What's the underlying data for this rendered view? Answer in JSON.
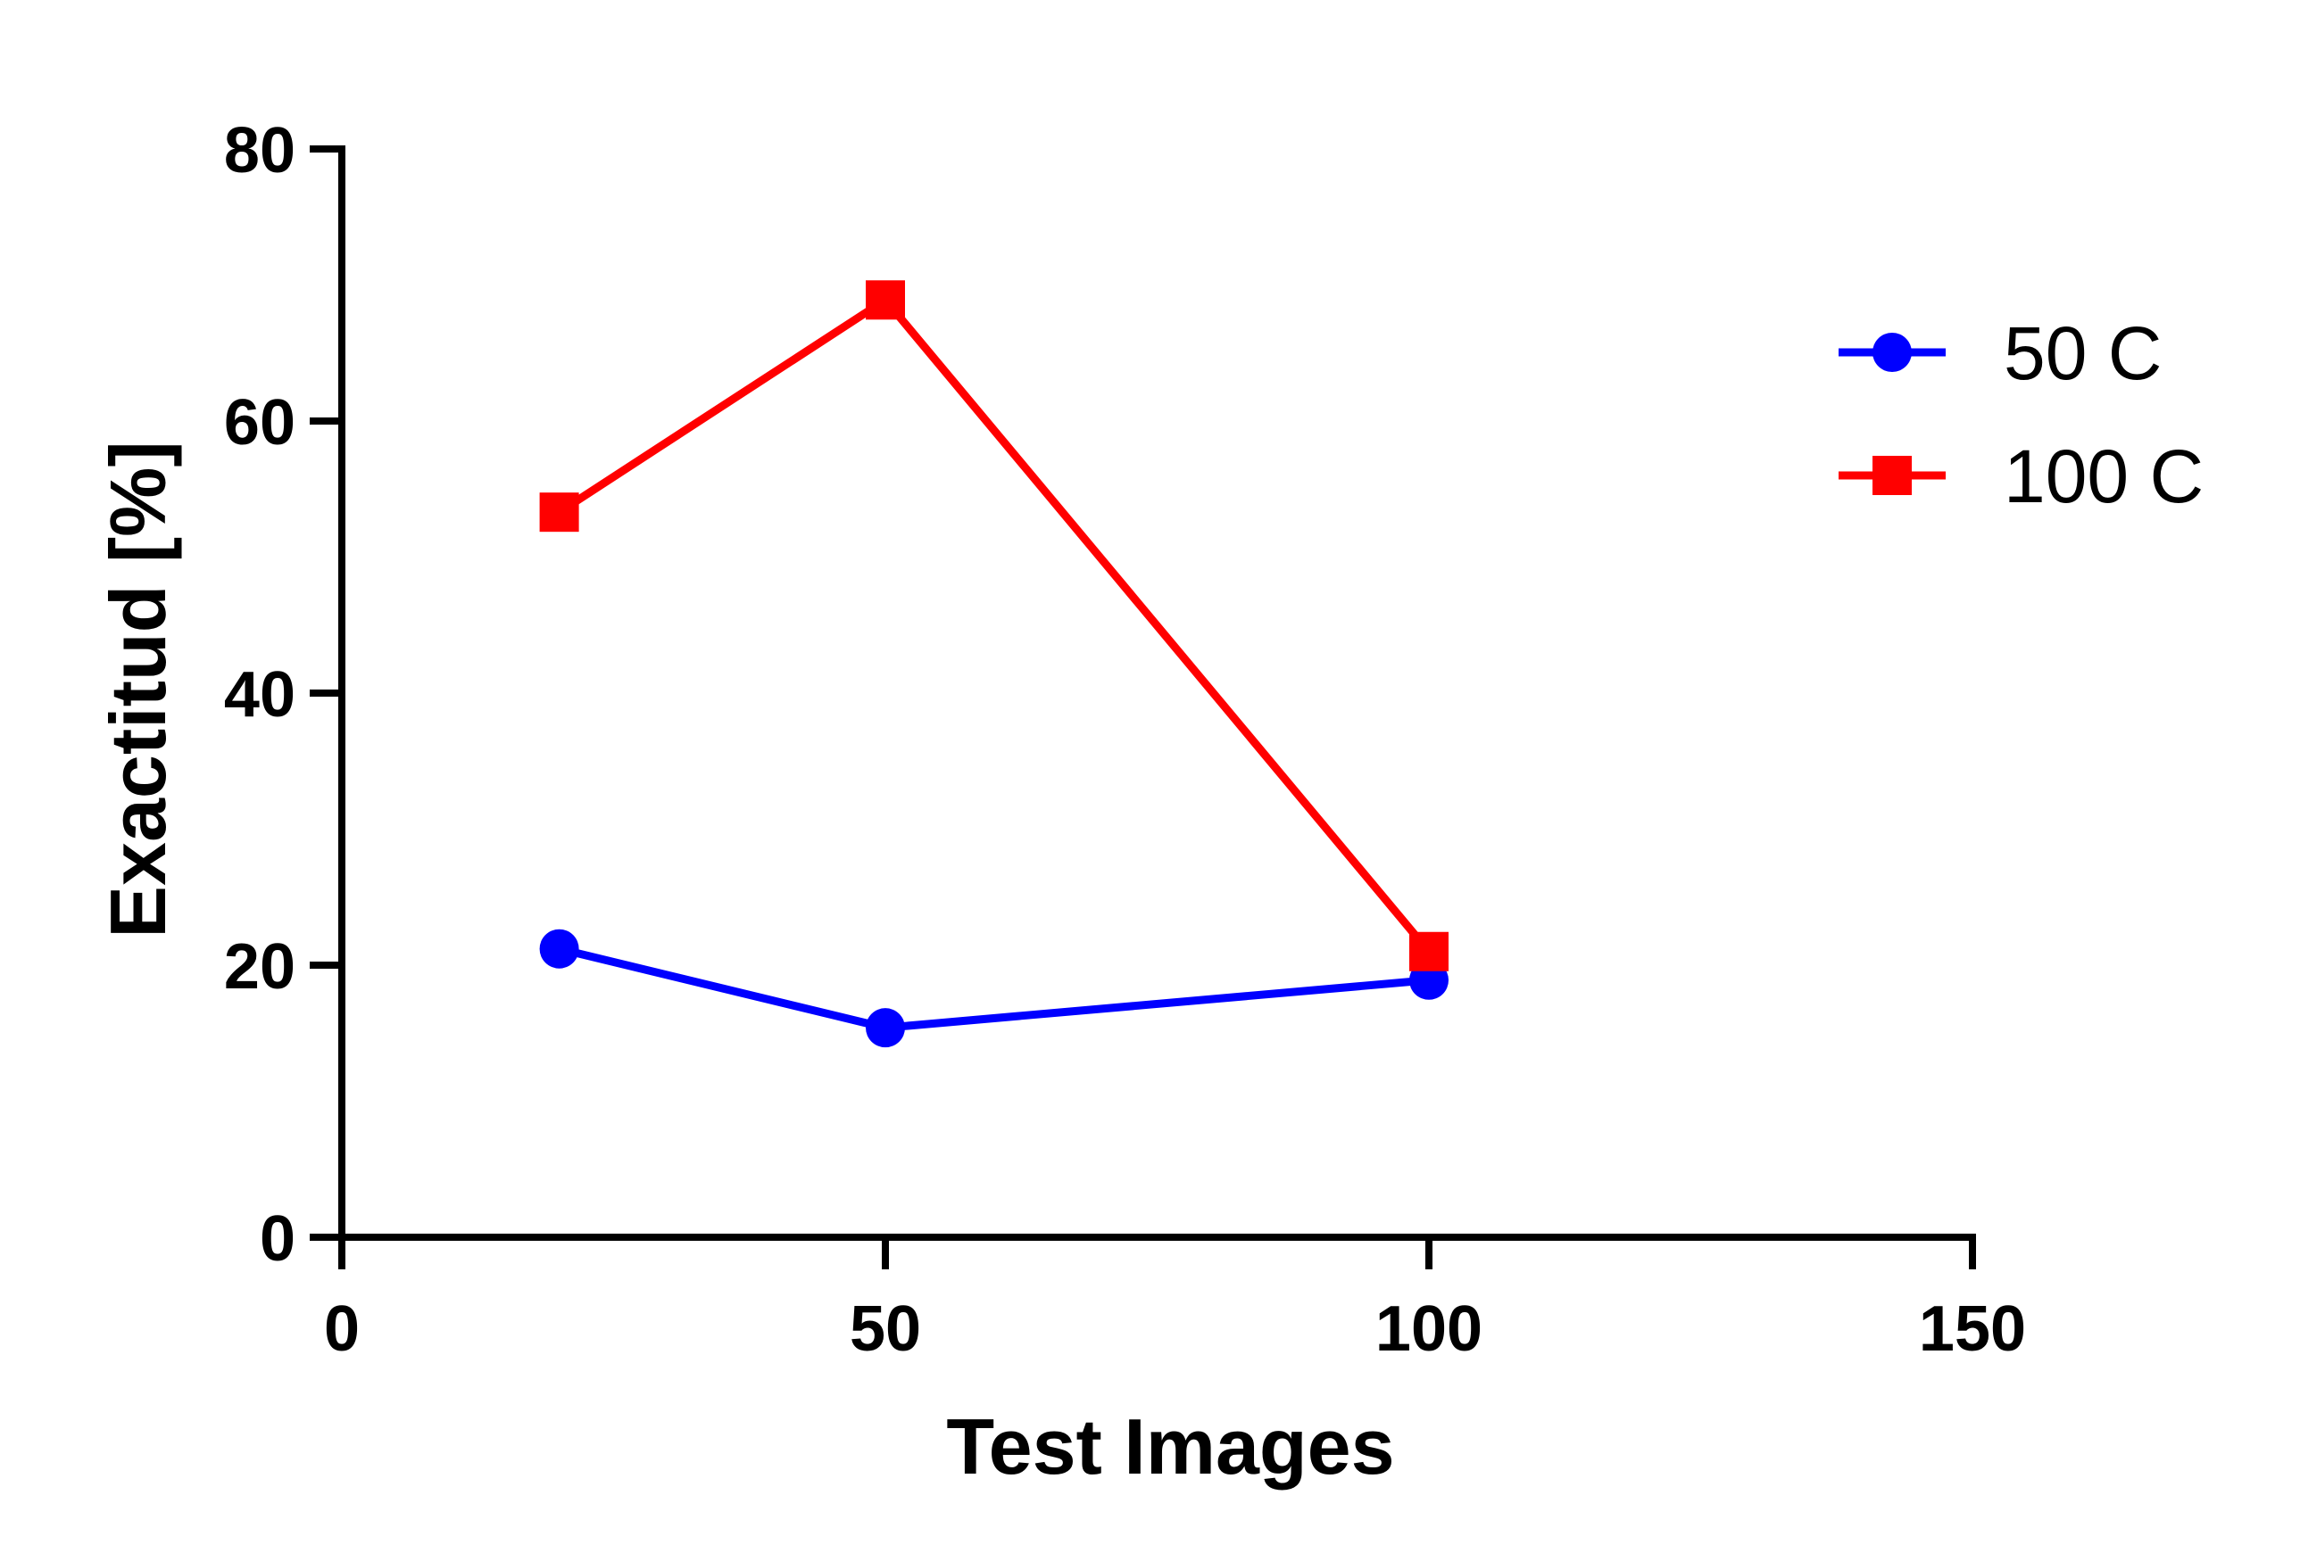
{
  "chart_data": {
    "type": "line",
    "xlabel": "Test Images",
    "ylabel": "Exactitud [%]",
    "xlim": [
      0,
      150
    ],
    "ylim": [
      0,
      80
    ],
    "xticks": [
      0,
      50,
      100,
      150
    ],
    "yticks": [
      0,
      20,
      40,
      60,
      80
    ],
    "grid": false,
    "legend_position": "right",
    "series": [
      {
        "name": "50 C",
        "color": "#0000ff",
        "marker": "circle",
        "points": [
          {
            "x": 20,
            "y": 21.2
          },
          {
            "x": 50,
            "y": 15.4
          },
          {
            "x": 100,
            "y": 18.9
          }
        ]
      },
      {
        "name": "100 C",
        "color": "#ff0000",
        "marker": "square",
        "points": [
          {
            "x": 20,
            "y": 53.3
          },
          {
            "x": 50,
            "y": 68.9
          },
          {
            "x": 100,
            "y": 21.0
          }
        ]
      }
    ]
  }
}
